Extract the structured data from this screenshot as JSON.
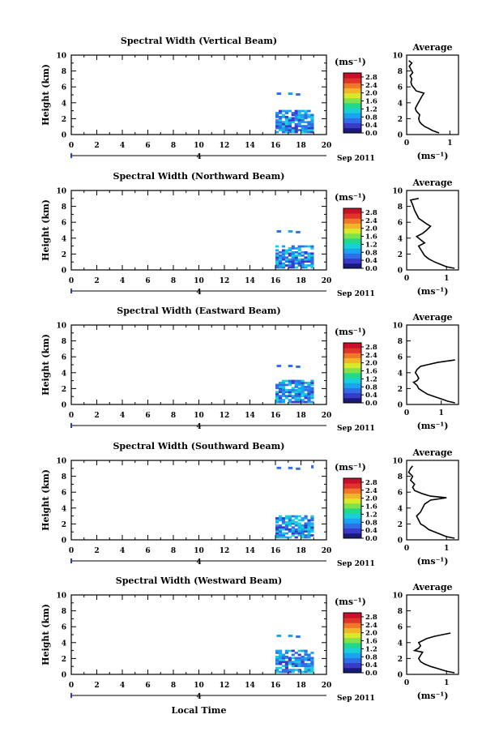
{
  "figure": {
    "x_axis_label": "Local Time",
    "date_label": "Sep 2011",
    "day_marker": "4",
    "colorbar_unit": "(ms⁻¹)",
    "avg_title": "Average",
    "avg_xlabel": "(ms⁻¹)"
  },
  "chart_data": [
    {
      "type": "heatmap",
      "title": "Spectral Width (Vertical Beam)",
      "ylabel": "Height (km)",
      "xlabel": "Local Time",
      "xlim": [
        0,
        20
      ],
      "ylim": [
        0,
        10
      ],
      "x_ticks": [
        0,
        2,
        4,
        6,
        8,
        10,
        12,
        14,
        16,
        18,
        20
      ],
      "y_ticks": [
        0,
        2,
        4,
        6,
        8,
        10
      ],
      "colorbar": {
        "label": "(ms⁻¹)",
        "ticks": [
          "0.0",
          "0.4",
          "0.8",
          "1.2",
          "1.6",
          "2.0",
          "2.4",
          "2.8"
        ],
        "range": [
          0,
          3.0
        ]
      },
      "data_extent": {
        "time": [
          16.0,
          19.0
        ],
        "height": [
          0.2,
          5.5
        ]
      },
      "average": {
        "title": "Average",
        "xlabel": "(ms⁻¹)",
        "xlim": [
          0,
          1.2
        ],
        "x_ticks": [
          0,
          1
        ],
        "y_ticks": [
          0,
          2,
          4,
          6,
          8,
          10
        ],
        "height": [
          0.2,
          0.5,
          0.8,
          1.0,
          1.3,
          1.6,
          2.0,
          2.5,
          2.8,
          3.0,
          3.3,
          3.8,
          4.3,
          4.8,
          5.2,
          5.5,
          5.8,
          6.2,
          6.6,
          7.0,
          7.4,
          7.8,
          8.2,
          8.6,
          9.0,
          9.3
        ],
        "value": [
          0.75,
          0.6,
          0.5,
          0.42,
          0.35,
          0.3,
          0.28,
          0.3,
          0.25,
          0.22,
          0.2,
          0.25,
          0.3,
          0.35,
          0.4,
          0.22,
          0.18,
          0.12,
          0.1,
          0.12,
          0.08,
          0.14,
          0.1,
          0.06,
          0.12,
          0.05
        ]
      }
    },
    {
      "type": "heatmap",
      "title": "Spectral Width (Northward Beam)",
      "ylabel": "Height (km)",
      "xlabel": "Local Time",
      "xlim": [
        0,
        20
      ],
      "ylim": [
        0,
        10
      ],
      "x_ticks": [
        0,
        2,
        4,
        6,
        8,
        10,
        12,
        14,
        16,
        18,
        20
      ],
      "y_ticks": [
        0,
        2,
        4,
        6,
        8,
        10
      ],
      "colorbar": {
        "label": "(ms⁻¹)",
        "ticks": [
          "0.0",
          "0.4",
          "0.8",
          "1.2",
          "1.6",
          "2.0",
          "2.4",
          "2.8"
        ],
        "range": [
          0,
          3.0
        ]
      },
      "data_extent": {
        "time": [
          16.0,
          19.0
        ],
        "height": [
          0.2,
          5.2
        ]
      },
      "average": {
        "title": "Average",
        "xlabel": "(ms⁻¹)",
        "xlim": [
          0,
          1.3
        ],
        "x_ticks": [
          0,
          1
        ],
        "y_ticks": [
          0,
          2,
          4,
          6,
          8,
          10
        ],
        "height": [
          0.2,
          0.4,
          0.7,
          1.0,
          1.4,
          1.8,
          2.2,
          2.6,
          3.0,
          3.4,
          3.8,
          4.2,
          4.6,
          5.0,
          5.5,
          5.8,
          6.5,
          7.5,
          8.2,
          8.8,
          9.0
        ],
        "value": [
          1.2,
          1.0,
          0.85,
          0.7,
          0.55,
          0.45,
          0.4,
          0.35,
          0.3,
          0.45,
          0.35,
          0.25,
          0.4,
          0.5,
          0.6,
          0.5,
          0.3,
          0.2,
          0.15,
          0.1,
          0.3
        ]
      }
    },
    {
      "type": "heatmap",
      "title": "Spectral Width (Eastward Beam)",
      "ylabel": "Height (km)",
      "xlabel": "Local Time",
      "xlim": [
        0,
        20
      ],
      "ylim": [
        0,
        10
      ],
      "x_ticks": [
        0,
        2,
        4,
        6,
        8,
        10,
        12,
        14,
        16,
        18,
        20
      ],
      "y_ticks": [
        0,
        2,
        4,
        6,
        8,
        10
      ],
      "colorbar": {
        "label": "(ms⁻¹)",
        "ticks": [
          "0.0",
          "0.4",
          "0.8",
          "1.2",
          "1.6",
          "2.0",
          "2.4",
          "2.8"
        ],
        "range": [
          0,
          3.0
        ]
      },
      "data_extent": {
        "time": [
          16.0,
          19.0
        ],
        "height": [
          0.2,
          5.2
        ]
      },
      "average": {
        "title": "Average",
        "xlabel": "(ms⁻¹)",
        "xlim": [
          0,
          1.5
        ],
        "x_ticks": [
          0,
          1
        ],
        "y_ticks": [
          0,
          2,
          4,
          6,
          8,
          10
        ],
        "height": [
          0.2,
          0.4,
          0.7,
          1.0,
          1.3,
          1.7,
          2.0,
          2.4,
          2.8,
          3.0,
          3.3,
          3.7,
          4.0,
          4.4,
          4.8,
          5.0,
          5.3,
          5.6
        ],
        "value": [
          1.4,
          1.2,
          1.0,
          0.8,
          0.6,
          0.45,
          0.35,
          0.3,
          0.2,
          0.3,
          0.35,
          0.3,
          0.25,
          0.3,
          0.4,
          0.6,
          0.9,
          1.4
        ]
      }
    },
    {
      "type": "heatmap",
      "title": "Spectral Width (Southward Beam)",
      "ylabel": "Height (km)",
      "xlabel": "Local Time",
      "xlim": [
        0,
        20
      ],
      "ylim": [
        0,
        10
      ],
      "x_ticks": [
        0,
        2,
        4,
        6,
        8,
        10,
        12,
        14,
        16,
        18,
        20
      ],
      "y_ticks": [
        0,
        2,
        4,
        6,
        8,
        10
      ],
      "colorbar": {
        "label": "(ms⁻¹)",
        "ticks": [
          "0.0",
          "0.4",
          "0.8",
          "1.2",
          "1.6",
          "2.0",
          "2.4",
          "2.8"
        ],
        "range": [
          0,
          3.0
        ]
      },
      "data_extent": {
        "time": [
          16.0,
          19.0
        ],
        "height": [
          0.2,
          9.4
        ]
      },
      "average": {
        "title": "Average",
        "xlabel": "(ms⁻¹)",
        "xlim": [
          0,
          1.3
        ],
        "x_ticks": [
          0,
          1
        ],
        "y_ticks": [
          0,
          2,
          4,
          6,
          8,
          10
        ],
        "height": [
          0.2,
          0.4,
          0.7,
          1.0,
          1.3,
          1.7,
          2.0,
          2.5,
          3.0,
          3.5,
          4.0,
          4.5,
          5.0,
          5.3,
          5.5,
          5.8,
          6.2,
          6.6,
          7.0,
          7.5,
          8.0,
          8.5,
          9.0,
          9.3
        ],
        "value": [
          1.2,
          1.0,
          0.85,
          0.7,
          0.55,
          0.45,
          0.35,
          0.3,
          0.25,
          0.35,
          0.4,
          0.45,
          0.6,
          1.0,
          0.6,
          0.4,
          0.2,
          0.15,
          0.2,
          0.1,
          0.15,
          0.05,
          0.1,
          0.15
        ]
      }
    },
    {
      "type": "heatmap",
      "title": "Spectral Width (Westward Beam)",
      "ylabel": "Height (km)",
      "xlabel": "Local Time",
      "xlim": [
        0,
        20
      ],
      "ylim": [
        0,
        10
      ],
      "x_ticks": [
        0,
        2,
        4,
        6,
        8,
        10,
        12,
        14,
        16,
        18,
        20
      ],
      "y_ticks": [
        0,
        2,
        4,
        6,
        8,
        10
      ],
      "colorbar": {
        "label": "(ms⁻¹)",
        "ticks": [
          "0.0",
          "0.4",
          "0.8",
          "1.2",
          "1.6",
          "2.0",
          "2.4",
          "2.8"
        ],
        "range": [
          0,
          3.0
        ]
      },
      "data_extent": {
        "time": [
          16.0,
          19.0
        ],
        "height": [
          0.2,
          5.2
        ]
      },
      "average": {
        "title": "Average",
        "xlabel": "(ms⁻¹)",
        "xlim": [
          0,
          1.3
        ],
        "x_ticks": [
          0,
          1
        ],
        "y_ticks": [
          0,
          2,
          4,
          6,
          8,
          10
        ],
        "height": [
          0.2,
          0.4,
          0.7,
          1.0,
          1.3,
          1.6,
          2.0,
          2.4,
          2.8,
          3.0,
          3.3,
          3.6,
          4.0,
          4.5,
          4.8,
          5.0,
          5.2
        ],
        "value": [
          1.2,
          1.0,
          0.8,
          0.6,
          0.45,
          0.35,
          0.3,
          0.35,
          0.4,
          0.2,
          0.3,
          0.35,
          0.3,
          0.5,
          0.7,
          0.9,
          1.1
        ]
      }
    }
  ]
}
